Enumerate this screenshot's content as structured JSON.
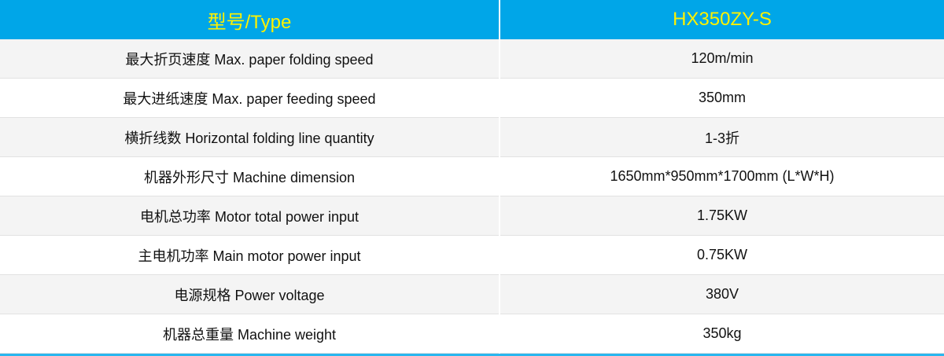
{
  "header": {
    "col1": "型号/Type",
    "col2": "HX350ZY-S"
  },
  "colors": {
    "header_bg": "#00a6e8",
    "header_text": "#fff100"
  },
  "rows": [
    {
      "label": "最大折页速度 Max. paper folding speed",
      "value": "120m/min"
    },
    {
      "label": "最大进纸速度 Max. paper feeding speed",
      "value": "350mm"
    },
    {
      "label": "横折线数 Horizontal folding line quantity",
      "value": "1-3折"
    },
    {
      "label": "机器外形尺寸 Machine dimension",
      "value": "1650mm*950mm*1700mm (L*W*H)"
    },
    {
      "label": "电机总功率 Motor total power input",
      "value": "1.75KW"
    },
    {
      "label": "主电机功率 Main motor power input",
      "value": "0.75KW"
    },
    {
      "label": "电源规格 Power voltage",
      "value": "380V"
    },
    {
      "label": "机器总重量 Machine weight",
      "value": "350kg"
    }
  ]
}
